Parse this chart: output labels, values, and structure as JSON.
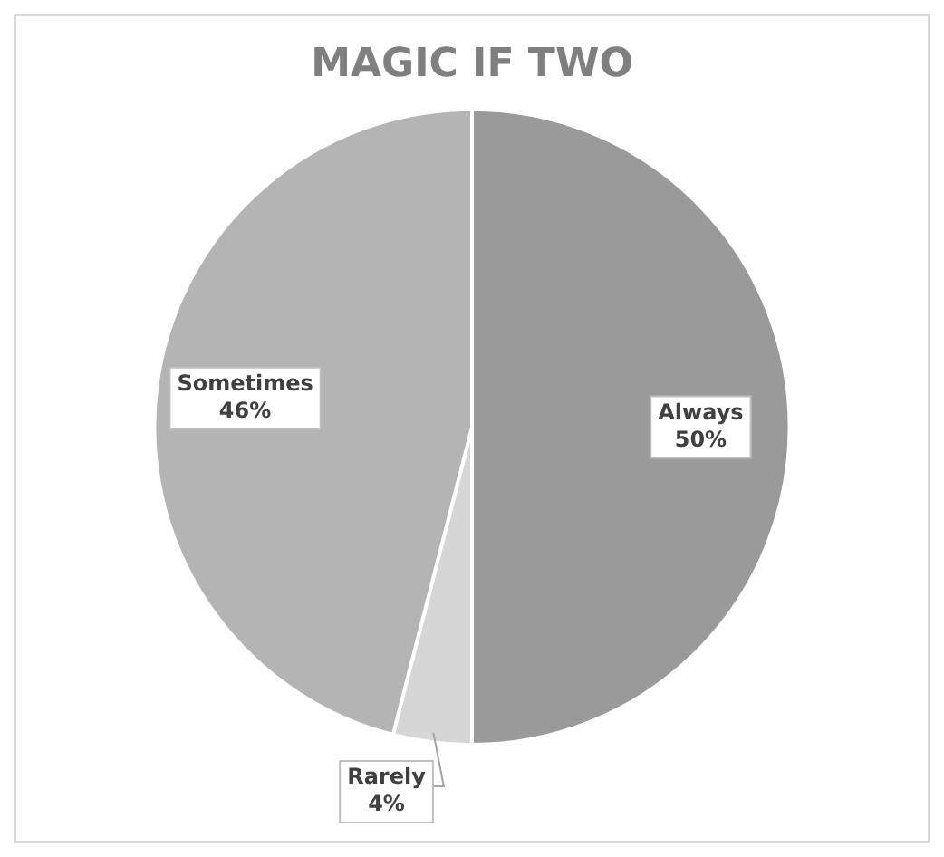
{
  "chart_data": {
    "type": "pie",
    "title": "MAGIC IF TWO",
    "categories": [
      "Always",
      "Rarely",
      "Sometimes"
    ],
    "values": [
      50,
      4,
      46
    ],
    "colors": [
      "#9a9a9a",
      "#d6d6d6",
      "#b4b4b4"
    ],
    "value_labels": [
      "50%",
      "4%",
      "46%"
    ],
    "legend": false
  }
}
